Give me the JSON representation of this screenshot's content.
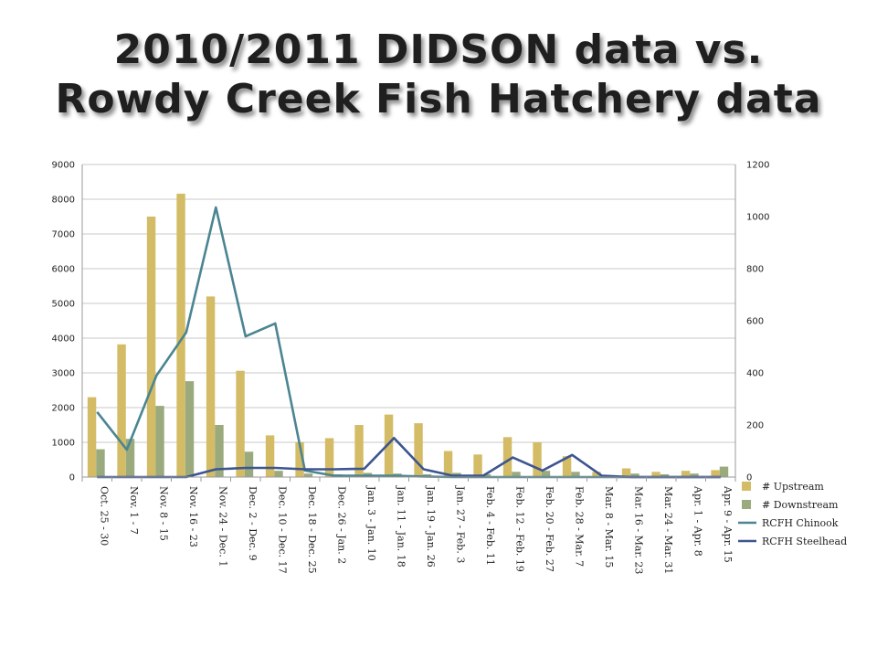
{
  "slide": {
    "title_line1": "2010/2011 DIDSON data vs.",
    "title_line2": "Rowdy Creek Fish Hatchery data"
  },
  "chart_data": {
    "type": "bar",
    "title": "2010/2011 DIDSON data vs. Rowdy Creek Fish Hatchery data",
    "categories": [
      "Oct. 25 - 30",
      "Nov. 1 - 7",
      "Nov. 8 - 15",
      "Nov. 16 - 23",
      "Nov. 24 - Dec. 1",
      "Dec. 2 - Dec. 9",
      "Dec. 10 - Dec. 17",
      "Dec. 18 - Dec. 25",
      "Dec. 26 - Jan. 2",
      "Jan. 3 - Jan. 10",
      "Jan. 11 - Jan. 18",
      "Jan. 19 - Jan. 26",
      "Jan. 27 - Feb. 3",
      "Feb. 4 - Feb. 11",
      "Feb. 12 - Feb. 19",
      "Feb. 20 - Feb. 27",
      "Feb. 28 - Mar. 7",
      "Mar. 8 - Mar. 15",
      "Mar. 16 - Mar. 23",
      "Mar. 24 - Mar. 31",
      "Apr. 1 - Apr. 8",
      "Apr. 9 - Apr. 15"
    ],
    "y_left": {
      "min": 0,
      "max": 9000,
      "step": 1000
    },
    "y_right": {
      "min": 0,
      "max": 1200,
      "step": 200
    },
    "grid": true,
    "legend_position": "right",
    "series": [
      {
        "name": "# Upstream",
        "kind": "bar",
        "axis": "left",
        "color": "#d4bc66",
        "values": [
          2300,
          3820,
          7500,
          8160,
          5200,
          3060,
          1200,
          1000,
          1120,
          1500,
          1800,
          1550,
          750,
          650,
          1150,
          1000,
          600,
          150,
          250,
          150,
          180,
          200
        ]
      },
      {
        "name": "# Downstream",
        "kind": "bar",
        "axis": "left",
        "color": "#9aaa7d",
        "values": [
          800,
          1100,
          2050,
          2760,
          1500,
          730,
          180,
          100,
          80,
          120,
          100,
          80,
          120,
          80,
          150,
          180,
          150,
          60,
          100,
          80,
          100,
          300
        ]
      },
      {
        "name": "RCFH Chinook",
        "kind": "line",
        "axis": "right",
        "color": "#4b8591",
        "values": [
          250,
          105,
          390,
          555,
          1035,
          540,
          590,
          25,
          5,
          5,
          5,
          2,
          0,
          0,
          0,
          0,
          0,
          0,
          0,
          0,
          0,
          0
        ]
      },
      {
        "name": "RCFH Steelhead",
        "kind": "line",
        "axis": "right",
        "color": "#3d5590",
        "values": [
          0,
          0,
          0,
          0,
          30,
          35,
          35,
          30,
          30,
          32,
          150,
          30,
          5,
          5,
          75,
          25,
          85,
          5,
          0,
          0,
          0,
          0
        ]
      }
    ]
  }
}
